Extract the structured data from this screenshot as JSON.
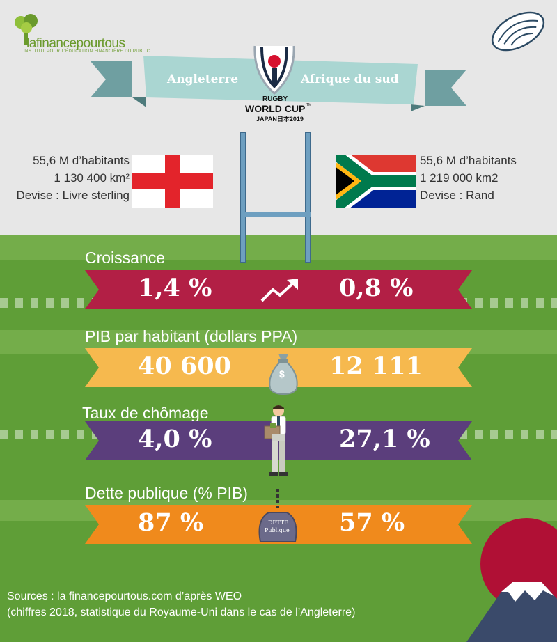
{
  "brand": {
    "name": "lafinancepourtous",
    "tagline": "INSTITUT POUR L'ÉDUCATION FINANCIÈRE DU PUBLIC"
  },
  "banner": {
    "left": "Angleterre",
    "right": "Afrique du sud"
  },
  "event": {
    "line1": "RUGBY",
    "line2": "WORLD CUP",
    "line3": "JAPAN日本2019",
    "tm": "TM"
  },
  "england": {
    "population": "55,6 M d’habitants",
    "area": "1 130 400 km²",
    "currency": "Devise : Livre sterling"
  },
  "south_africa": {
    "population": "55,6 M d’habitants",
    "area": "1 219 000 km2",
    "currency": "Devise : Rand"
  },
  "stats": [
    {
      "label": "Croissance",
      "england": "1,4 %",
      "south_africa": "0,8 %",
      "color": "#b21f45",
      "icon": "trend-up-arrow-icon"
    },
    {
      "label": "PIB par habitant (dollars PPA)",
      "england": "40 600",
      "south_africa": "12 111",
      "color": "#f6b94e",
      "icon": "money-bag-icon",
      "icon_text": "$"
    },
    {
      "label": "Taux de chômage",
      "england": "4,0 %",
      "south_africa": "27,1 %",
      "color": "#5b3e7c",
      "icon": "unemployed-man-icon"
    },
    {
      "label": "Dette publique (% PIB)",
      "england": "87 %",
      "south_africa": "57 %",
      "color": "#f08a1c",
      "icon": "debt-weight-icon",
      "icon_text1": "DETTE",
      "icon_text2": "Publique"
    }
  ],
  "sources": {
    "line1": "Sources : la financepourtous.com d’après WEO",
    "line2": "(chiffres 2018, statistique du Royaume-Uni dans le cas de l’Angleterre)"
  }
}
